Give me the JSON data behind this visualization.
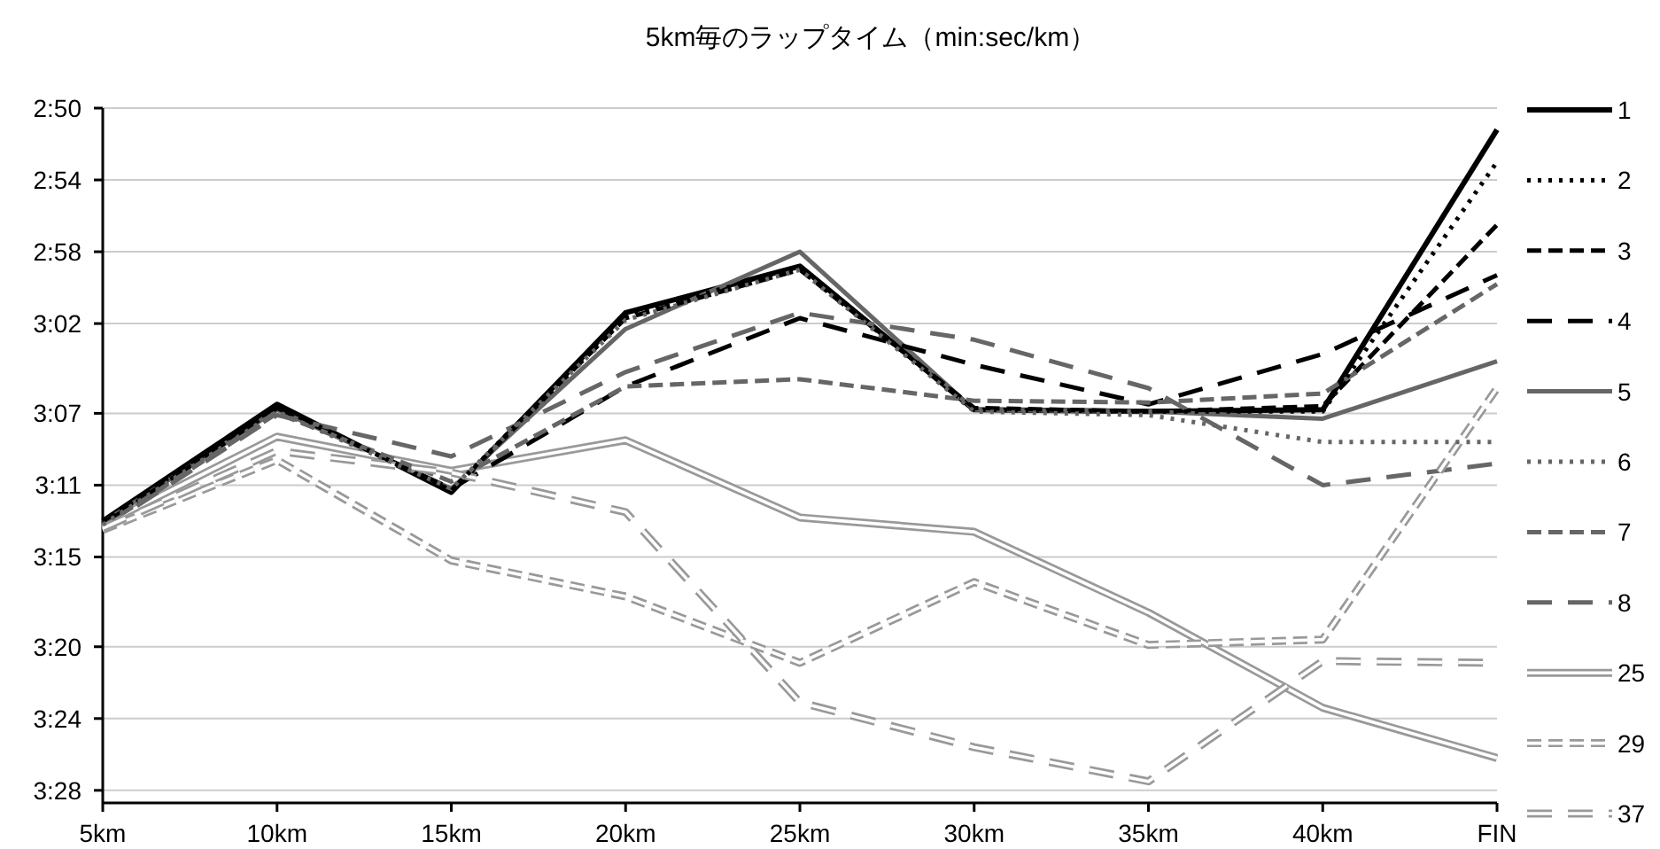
{
  "chart_data": {
    "type": "line",
    "title": "5km毎のラップタイム（min:sec/km）",
    "categories": [
      "5km",
      "10km",
      "15km",
      "20km",
      "25km",
      "30km",
      "35km",
      "40km",
      "FIN"
    ],
    "ylim": [
      208.7,
      170
    ],
    "yticks": [
      {
        "value": 170,
        "label": "2:50"
      },
      {
        "value": 174,
        "label": "2:54"
      },
      {
        "value": 178,
        "label": "2:58"
      },
      {
        "value": 182,
        "label": "3:02"
      },
      {
        "value": 187,
        "label": "3:07"
      },
      {
        "value": 191,
        "label": "3:11"
      },
      {
        "value": 195,
        "label": "3:15"
      },
      {
        "value": 200,
        "label": "3:20"
      },
      {
        "value": 204,
        "label": "3:24"
      },
      {
        "value": 208,
        "label": "3:28"
      }
    ],
    "grid": "y",
    "legend": "right",
    "series": [
      {
        "name": "1",
        "color": "#000000",
        "line_style": "solid",
        "values": [
          193.0,
          186.5,
          191.4,
          181.4,
          178.8,
          186.8,
          186.9,
          186.8,
          171.2
        ]
      },
      {
        "name": "2",
        "color": "#000000",
        "line_style": "dotted",
        "values": [
          193.0,
          186.6,
          191.3,
          181.5,
          178.9,
          186.8,
          186.9,
          186.9,
          173.0
        ]
      },
      {
        "name": "3",
        "color": "#000000",
        "line_style": "dashed",
        "values": [
          193.1,
          186.6,
          191.3,
          181.7,
          179.0,
          186.7,
          186.9,
          186.6,
          176.5
        ]
      },
      {
        "name": "4",
        "color": "#000000",
        "line_style": "dashed",
        "values": [
          193.2,
          186.7,
          191.2,
          185.5,
          181.7,
          184.3,
          186.5,
          183.7,
          179.3
        ]
      },
      {
        "name": "5",
        "color": "#666666",
        "line_style": "solid",
        "values": [
          193.1,
          186.8,
          191.2,
          182.3,
          178.0,
          186.8,
          186.9,
          187.3,
          184.1
        ]
      },
      {
        "name": "6",
        "color": "#666666",
        "line_style": "dotted",
        "values": [
          193.2,
          186.9,
          191.2,
          181.8,
          179.0,
          186.9,
          187.1,
          188.6,
          188.6
        ]
      },
      {
        "name": "7",
        "color": "#666666",
        "line_style": "dashed",
        "values": [
          193.3,
          187.0,
          190.8,
          185.5,
          185.1,
          186.3,
          186.4,
          185.9,
          179.8
        ]
      },
      {
        "name": "8",
        "color": "#666666",
        "line_style": "dashed",
        "values": [
          193.4,
          187.1,
          189.4,
          184.7,
          181.4,
          182.9,
          185.6,
          191.0,
          189.8
        ]
      },
      {
        "name": "25",
        "color": "#999999",
        "line_style": "solid",
        "values": [
          193.2,
          188.3,
          190.2,
          188.5,
          192.8,
          193.6,
          198.1,
          203.4,
          206.2
        ]
      },
      {
        "name": "29",
        "color": "#999999",
        "line_style": "dashed",
        "values": [
          193.5,
          189.6,
          195.2,
          197.2,
          200.9,
          196.4,
          199.9,
          199.6,
          185.6
        ]
      },
      {
        "name": "37",
        "color": "#999999",
        "line_style": "dashed",
        "values": [
          193.4,
          189.1,
          190.3,
          192.5,
          203.1,
          205.6,
          207.5,
          200.8,
          200.9
        ]
      }
    ]
  }
}
